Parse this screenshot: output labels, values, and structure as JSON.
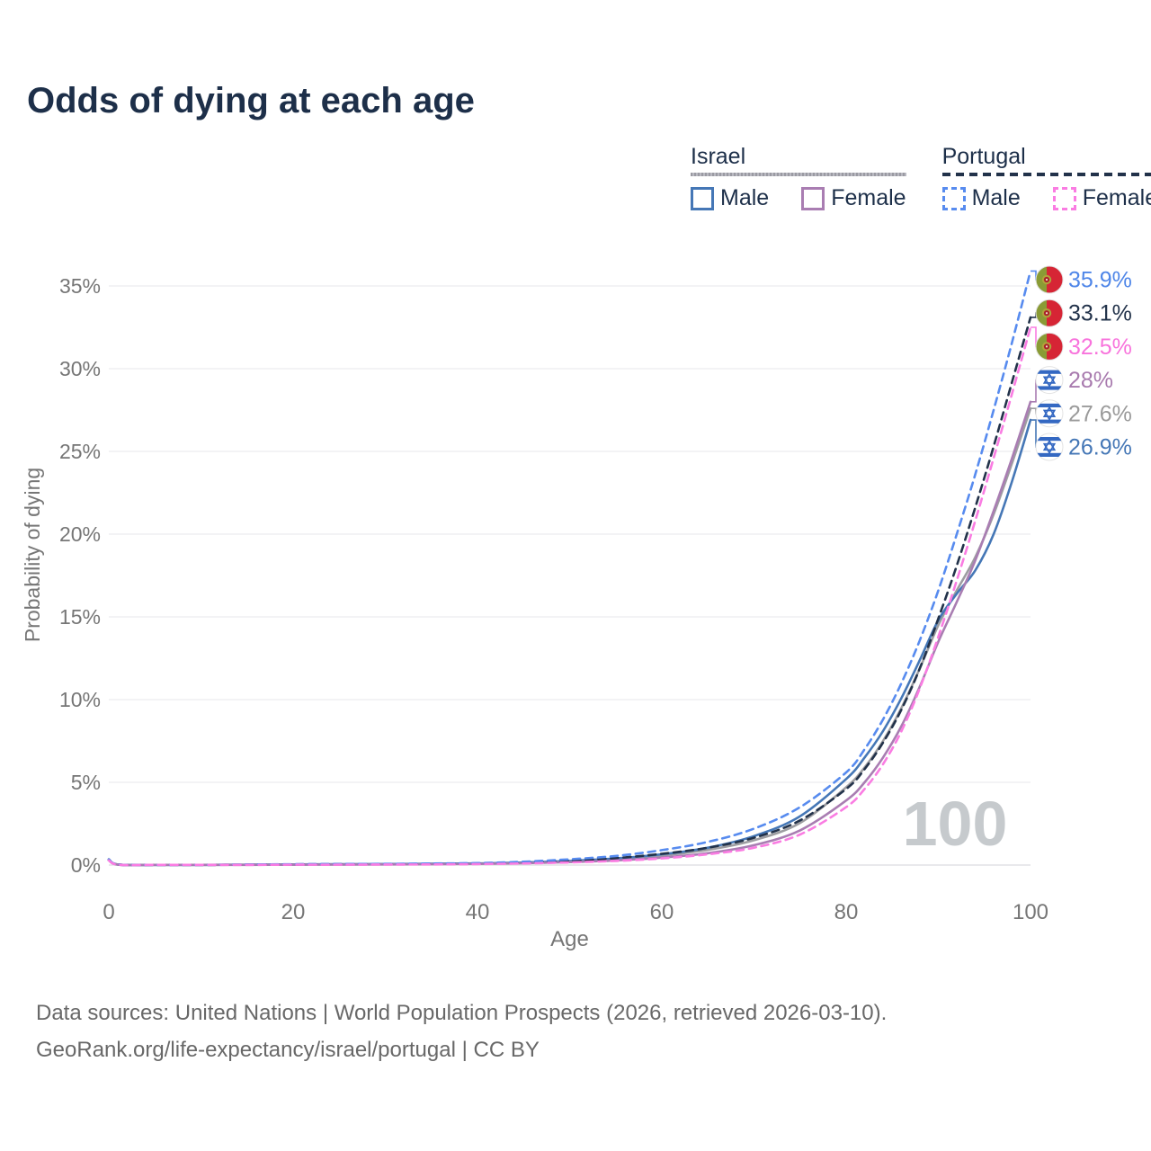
{
  "title": "Odds of dying at each age",
  "legend": {
    "israel": {
      "label": "Israel",
      "male": "Male",
      "female": "Female"
    },
    "portugal": {
      "label": "Portugal",
      "male": "Male",
      "female": "Female"
    }
  },
  "footer": {
    "line1": "Data sources: United Nations | World Population Prospects (2026, retrieved 2026-03-10).",
    "line2": "GeoRank.org/life-expectancy/israel/portugal | CC BY"
  },
  "colors": {
    "israel_male": "#4577b6",
    "israel_female": "#a97db2",
    "israel_total": "#9d9da1",
    "portugal_male": "#578bef",
    "portugal_female": "#fa7ce2",
    "portugal_total": "#22324a",
    "title_text": "#1d2f49",
    "axis_text": "#767676",
    "grid": "#ececef",
    "zero_line": "#dcdce0",
    "watermark": "#c6cacd",
    "portugal_flag_green": "#8a9b35",
    "portugal_flag_red": "#d62535",
    "israel_flag_blue": "#3468c2"
  },
  "chart_data": {
    "type": "line",
    "title": "Odds of dying at each age",
    "xlabel": "Age",
    "ylabel": "Probability of dying",
    "xlim": [
      0,
      100
    ],
    "ylim_pct": [
      0,
      36
    ],
    "xticks": [
      0,
      20,
      40,
      60,
      80,
      100
    ],
    "yticks_pct": [
      0,
      5,
      10,
      15,
      20,
      25,
      30,
      35
    ],
    "ytick_suffix": "%",
    "grid": "horizontal",
    "legend_position": "top-right",
    "hovered_age_watermark": "100",
    "series": [
      {
        "id": "israel_total",
        "name": "Israel (both sexes)",
        "country": "Israel",
        "sex": "total",
        "dashed": false,
        "color": "#9d9da1",
        "label_color": "#9a9a9a",
        "end_label": "27.6%",
        "flag": "israel",
        "label_row": 4,
        "points": [
          [
            0,
            0.32
          ],
          [
            1,
            0.03
          ],
          [
            5,
            0.01
          ],
          [
            10,
            0.01
          ],
          [
            15,
            0.02
          ],
          [
            20,
            0.03
          ],
          [
            25,
            0.04
          ],
          [
            30,
            0.05
          ],
          [
            35,
            0.07
          ],
          [
            40,
            0.09
          ],
          [
            45,
            0.14
          ],
          [
            50,
            0.23
          ],
          [
            55,
            0.36
          ],
          [
            60,
            0.58
          ],
          [
            65,
            0.92
          ],
          [
            70,
            1.5
          ],
          [
            75,
            2.55
          ],
          [
            80,
            4.7
          ],
          [
            82,
            5.9
          ],
          [
            84,
            7.5
          ],
          [
            86,
            9.5
          ],
          [
            88,
            11.9
          ],
          [
            90,
            14.5
          ],
          [
            92,
            16.6
          ],
          [
            94,
            18.6
          ],
          [
            96,
            21.2
          ],
          [
            98,
            24.3
          ],
          [
            100,
            27.6
          ]
        ]
      },
      {
        "id": "israel_male",
        "name": "Israel Male",
        "country": "Israel",
        "sex": "male",
        "dashed": false,
        "color": "#4577b6",
        "label_color": "#4577b6",
        "end_label": "26.9%",
        "flag": "israel",
        "label_row": 5,
        "points": [
          [
            0,
            0.35
          ],
          [
            1,
            0.03
          ],
          [
            5,
            0.01
          ],
          [
            10,
            0.01
          ],
          [
            15,
            0.02
          ],
          [
            20,
            0.04
          ],
          [
            25,
            0.05
          ],
          [
            30,
            0.06
          ],
          [
            35,
            0.08
          ],
          [
            40,
            0.1
          ],
          [
            45,
            0.15
          ],
          [
            50,
            0.25
          ],
          [
            55,
            0.4
          ],
          [
            60,
            0.65
          ],
          [
            65,
            1.05
          ],
          [
            70,
            1.75
          ],
          [
            75,
            2.95
          ],
          [
            80,
            5.2
          ],
          [
            82,
            6.5
          ],
          [
            84,
            8.1
          ],
          [
            86,
            10.1
          ],
          [
            88,
            12.4
          ],
          [
            90,
            14.8
          ],
          [
            92,
            16.4
          ],
          [
            94,
            17.8
          ],
          [
            96,
            20.0
          ],
          [
            98,
            23.2
          ],
          [
            100,
            26.9
          ]
        ]
      },
      {
        "id": "israel_female",
        "name": "Israel Female",
        "country": "Israel",
        "sex": "female",
        "dashed": false,
        "color": "#a97db2",
        "label_color": "#a87aae",
        "end_label": "28%",
        "flag": "israel",
        "label_row": 3,
        "points": [
          [
            0,
            0.3
          ],
          [
            1,
            0.02
          ],
          [
            5,
            0.01
          ],
          [
            10,
            0.01
          ],
          [
            15,
            0.01
          ],
          [
            20,
            0.02
          ],
          [
            25,
            0.03
          ],
          [
            30,
            0.04
          ],
          [
            35,
            0.05
          ],
          [
            40,
            0.07
          ],
          [
            45,
            0.11
          ],
          [
            50,
            0.18
          ],
          [
            55,
            0.28
          ],
          [
            60,
            0.45
          ],
          [
            65,
            0.72
          ],
          [
            70,
            1.2
          ],
          [
            75,
            2.1
          ],
          [
            80,
            3.9
          ],
          [
            82,
            5.0
          ],
          [
            84,
            6.5
          ],
          [
            86,
            8.4
          ],
          [
            88,
            10.8
          ],
          [
            90,
            13.5
          ],
          [
            92,
            15.9
          ],
          [
            94,
            18.4
          ],
          [
            96,
            21.4
          ],
          [
            98,
            24.6
          ],
          [
            100,
            28.0
          ]
        ]
      },
      {
        "id": "portugal_total",
        "name": "Portugal (both sexes)",
        "country": "Portugal",
        "sex": "total",
        "dashed": true,
        "color": "#22324a",
        "label_color": "#22324a",
        "end_label": "33.1%",
        "flag": "portugal",
        "label_row": 1,
        "points": [
          [
            0,
            0.3
          ],
          [
            1,
            0.03
          ],
          [
            5,
            0.01
          ],
          [
            10,
            0.01
          ],
          [
            15,
            0.02
          ],
          [
            20,
            0.04
          ],
          [
            25,
            0.05
          ],
          [
            30,
            0.05
          ],
          [
            35,
            0.07
          ],
          [
            40,
            0.09
          ],
          [
            45,
            0.15
          ],
          [
            50,
            0.26
          ],
          [
            55,
            0.42
          ],
          [
            60,
            0.68
          ],
          [
            65,
            1.05
          ],
          [
            70,
            1.65
          ],
          [
            75,
            2.7
          ],
          [
            80,
            4.6
          ],
          [
            82,
            5.8
          ],
          [
            84,
            7.4
          ],
          [
            86,
            9.4
          ],
          [
            88,
            11.9
          ],
          [
            90,
            14.9
          ],
          [
            92,
            18.1
          ],
          [
            94,
            21.6
          ],
          [
            96,
            25.3
          ],
          [
            98,
            29.2
          ],
          [
            100,
            33.1
          ]
        ]
      },
      {
        "id": "portugal_male",
        "name": "Portugal Male",
        "country": "Portugal",
        "sex": "male",
        "dashed": true,
        "color": "#578bef",
        "label_color": "#4f86e8",
        "end_label": "35.9%",
        "flag": "portugal",
        "label_row": 0,
        "points": [
          [
            0,
            0.33
          ],
          [
            1,
            0.03
          ],
          [
            5,
            0.01
          ],
          [
            10,
            0.01
          ],
          [
            15,
            0.03
          ],
          [
            20,
            0.05
          ],
          [
            25,
            0.06
          ],
          [
            30,
            0.07
          ],
          [
            35,
            0.09
          ],
          [
            40,
            0.12
          ],
          [
            45,
            0.2
          ],
          [
            50,
            0.35
          ],
          [
            55,
            0.55
          ],
          [
            60,
            0.9
          ],
          [
            65,
            1.4
          ],
          [
            70,
            2.2
          ],
          [
            75,
            3.5
          ],
          [
            80,
            5.6
          ],
          [
            82,
            7.0
          ],
          [
            84,
            8.8
          ],
          [
            86,
            11.0
          ],
          [
            88,
            13.6
          ],
          [
            90,
            16.6
          ],
          [
            92,
            20.0
          ],
          [
            94,
            23.6
          ],
          [
            96,
            27.5
          ],
          [
            98,
            31.6
          ],
          [
            100,
            35.9
          ]
        ]
      },
      {
        "id": "portugal_female",
        "name": "Portugal Female",
        "country": "Portugal",
        "sex": "female",
        "dashed": true,
        "color": "#fa7ce2",
        "label_color": "#f873dc",
        "end_label": "32.5%",
        "flag": "portugal",
        "label_row": 2,
        "points": [
          [
            0,
            0.28
          ],
          [
            1,
            0.02
          ],
          [
            5,
            0.01
          ],
          [
            10,
            0.01
          ],
          [
            15,
            0.01
          ],
          [
            20,
            0.02
          ],
          [
            25,
            0.02
          ],
          [
            30,
            0.03
          ],
          [
            35,
            0.04
          ],
          [
            40,
            0.06
          ],
          [
            45,
            0.1
          ],
          [
            50,
            0.16
          ],
          [
            55,
            0.25
          ],
          [
            60,
            0.4
          ],
          [
            65,
            0.65
          ],
          [
            70,
            1.05
          ],
          [
            75,
            1.85
          ],
          [
            80,
            3.5
          ],
          [
            82,
            4.6
          ],
          [
            84,
            6.1
          ],
          [
            86,
            8.1
          ],
          [
            88,
            10.7
          ],
          [
            90,
            13.8
          ],
          [
            92,
            17.2
          ],
          [
            94,
            20.8
          ],
          [
            96,
            24.6
          ],
          [
            98,
            28.5
          ],
          [
            100,
            32.5
          ]
        ]
      }
    ]
  }
}
